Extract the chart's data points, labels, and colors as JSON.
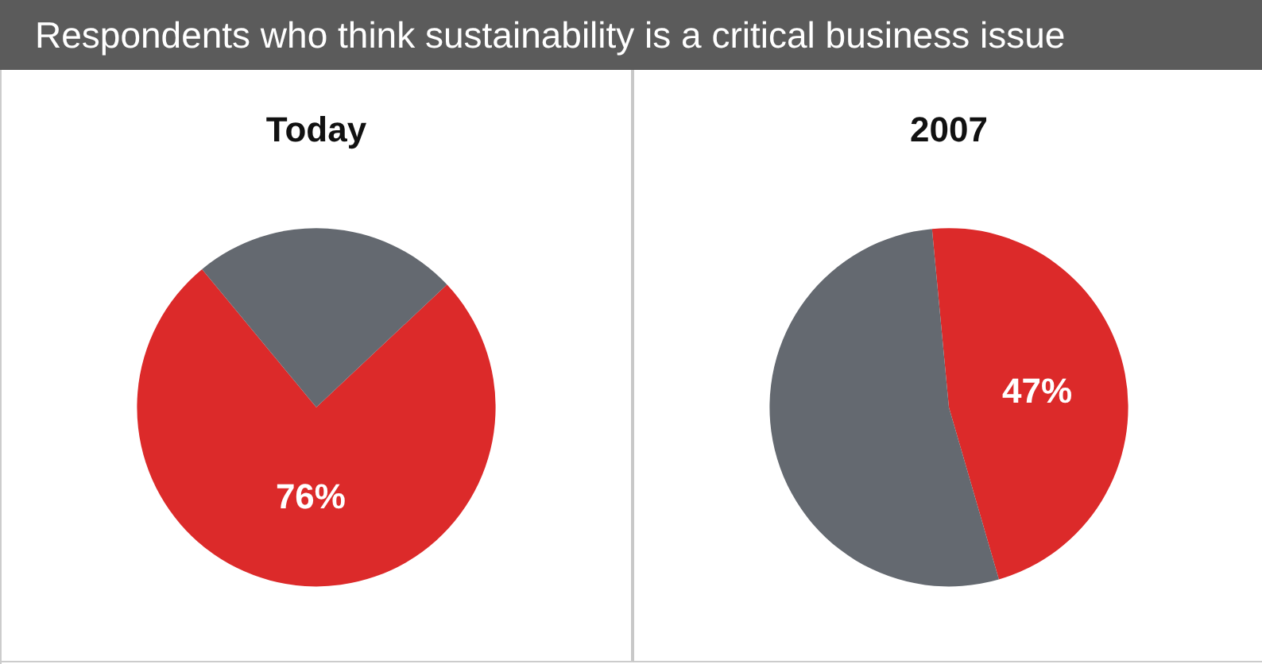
{
  "chart_data": [
    {
      "type": "pie",
      "title": "Today",
      "annotations": [
        "Respondents who think sustainability is a critical business issue"
      ],
      "categories": [
        null,
        null
      ],
      "values": [
        76,
        24
      ],
      "colors": [
        "#dc2a2a",
        "#646970"
      ],
      "value_labels": [
        "76%",
        null
      ],
      "legend": false
    },
    {
      "type": "pie",
      "title": "2007",
      "categories": [
        null,
        null
      ],
      "values": [
        47,
        53
      ],
      "colors": [
        "#dc2a2a",
        "#646970"
      ],
      "value_labels": [
        "47%",
        null
      ],
      "legend": false
    }
  ]
}
